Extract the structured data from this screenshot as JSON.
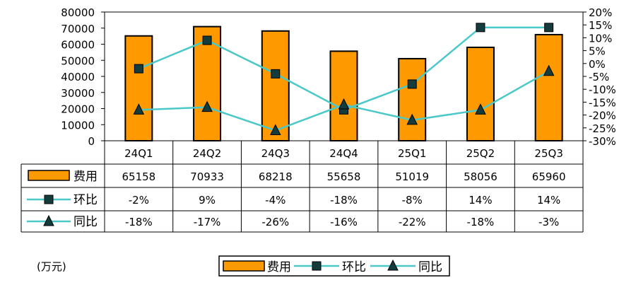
{
  "chart_data": {
    "type": "bar",
    "categories": [
      "24Q1",
      "24Q2",
      "24Q3",
      "24Q4",
      "25Q1",
      "25Q2",
      "25Q3"
    ],
    "series": [
      {
        "name": "费用",
        "kind": "bar",
        "axis": "left",
        "values": [
          65158,
          70933,
          68218,
          55658,
          51019,
          58056,
          65960
        ],
        "color": "#FF9900",
        "display": [
          "65158",
          "70933",
          "68218",
          "55658",
          "51019",
          "58056",
          "65960"
        ]
      },
      {
        "name": "环比",
        "kind": "line",
        "axis": "right",
        "marker": "square",
        "values": [
          -2,
          9,
          -4,
          -18,
          -8,
          14,
          14
        ],
        "color": "#4BC8C8",
        "display": [
          "-2%",
          "9%",
          "-4%",
          "-18%",
          "-8%",
          "14%",
          "14%"
        ]
      },
      {
        "name": "同比",
        "kind": "line",
        "axis": "right",
        "marker": "triangle",
        "values": [
          -18,
          -17,
          -26,
          -16,
          -22,
          -18,
          -3
        ],
        "color": "#4BC8C8",
        "display": [
          "-18%",
          "-17%",
          "-26%",
          "-16%",
          "-22%",
          "-18%",
          "-3%"
        ]
      }
    ],
    "left_axis": {
      "ylim": [
        0,
        80000
      ],
      "ticks": [
        "0",
        "10000",
        "20000",
        "30000",
        "40000",
        "50000",
        "60000",
        "70000",
        "80000"
      ]
    },
    "right_axis": {
      "ylim": [
        -30,
        20
      ],
      "ticks": [
        "-30%",
        "-25%",
        "-20%",
        "-15%",
        "-10%",
        "-5%",
        "0%",
        "5%",
        "10%",
        "15%",
        "20%"
      ]
    },
    "unit_label": "(万元)",
    "legend": {
      "placement": "bottom",
      "items": [
        "费用",
        "环比",
        "同比"
      ]
    },
    "grid": false
  }
}
